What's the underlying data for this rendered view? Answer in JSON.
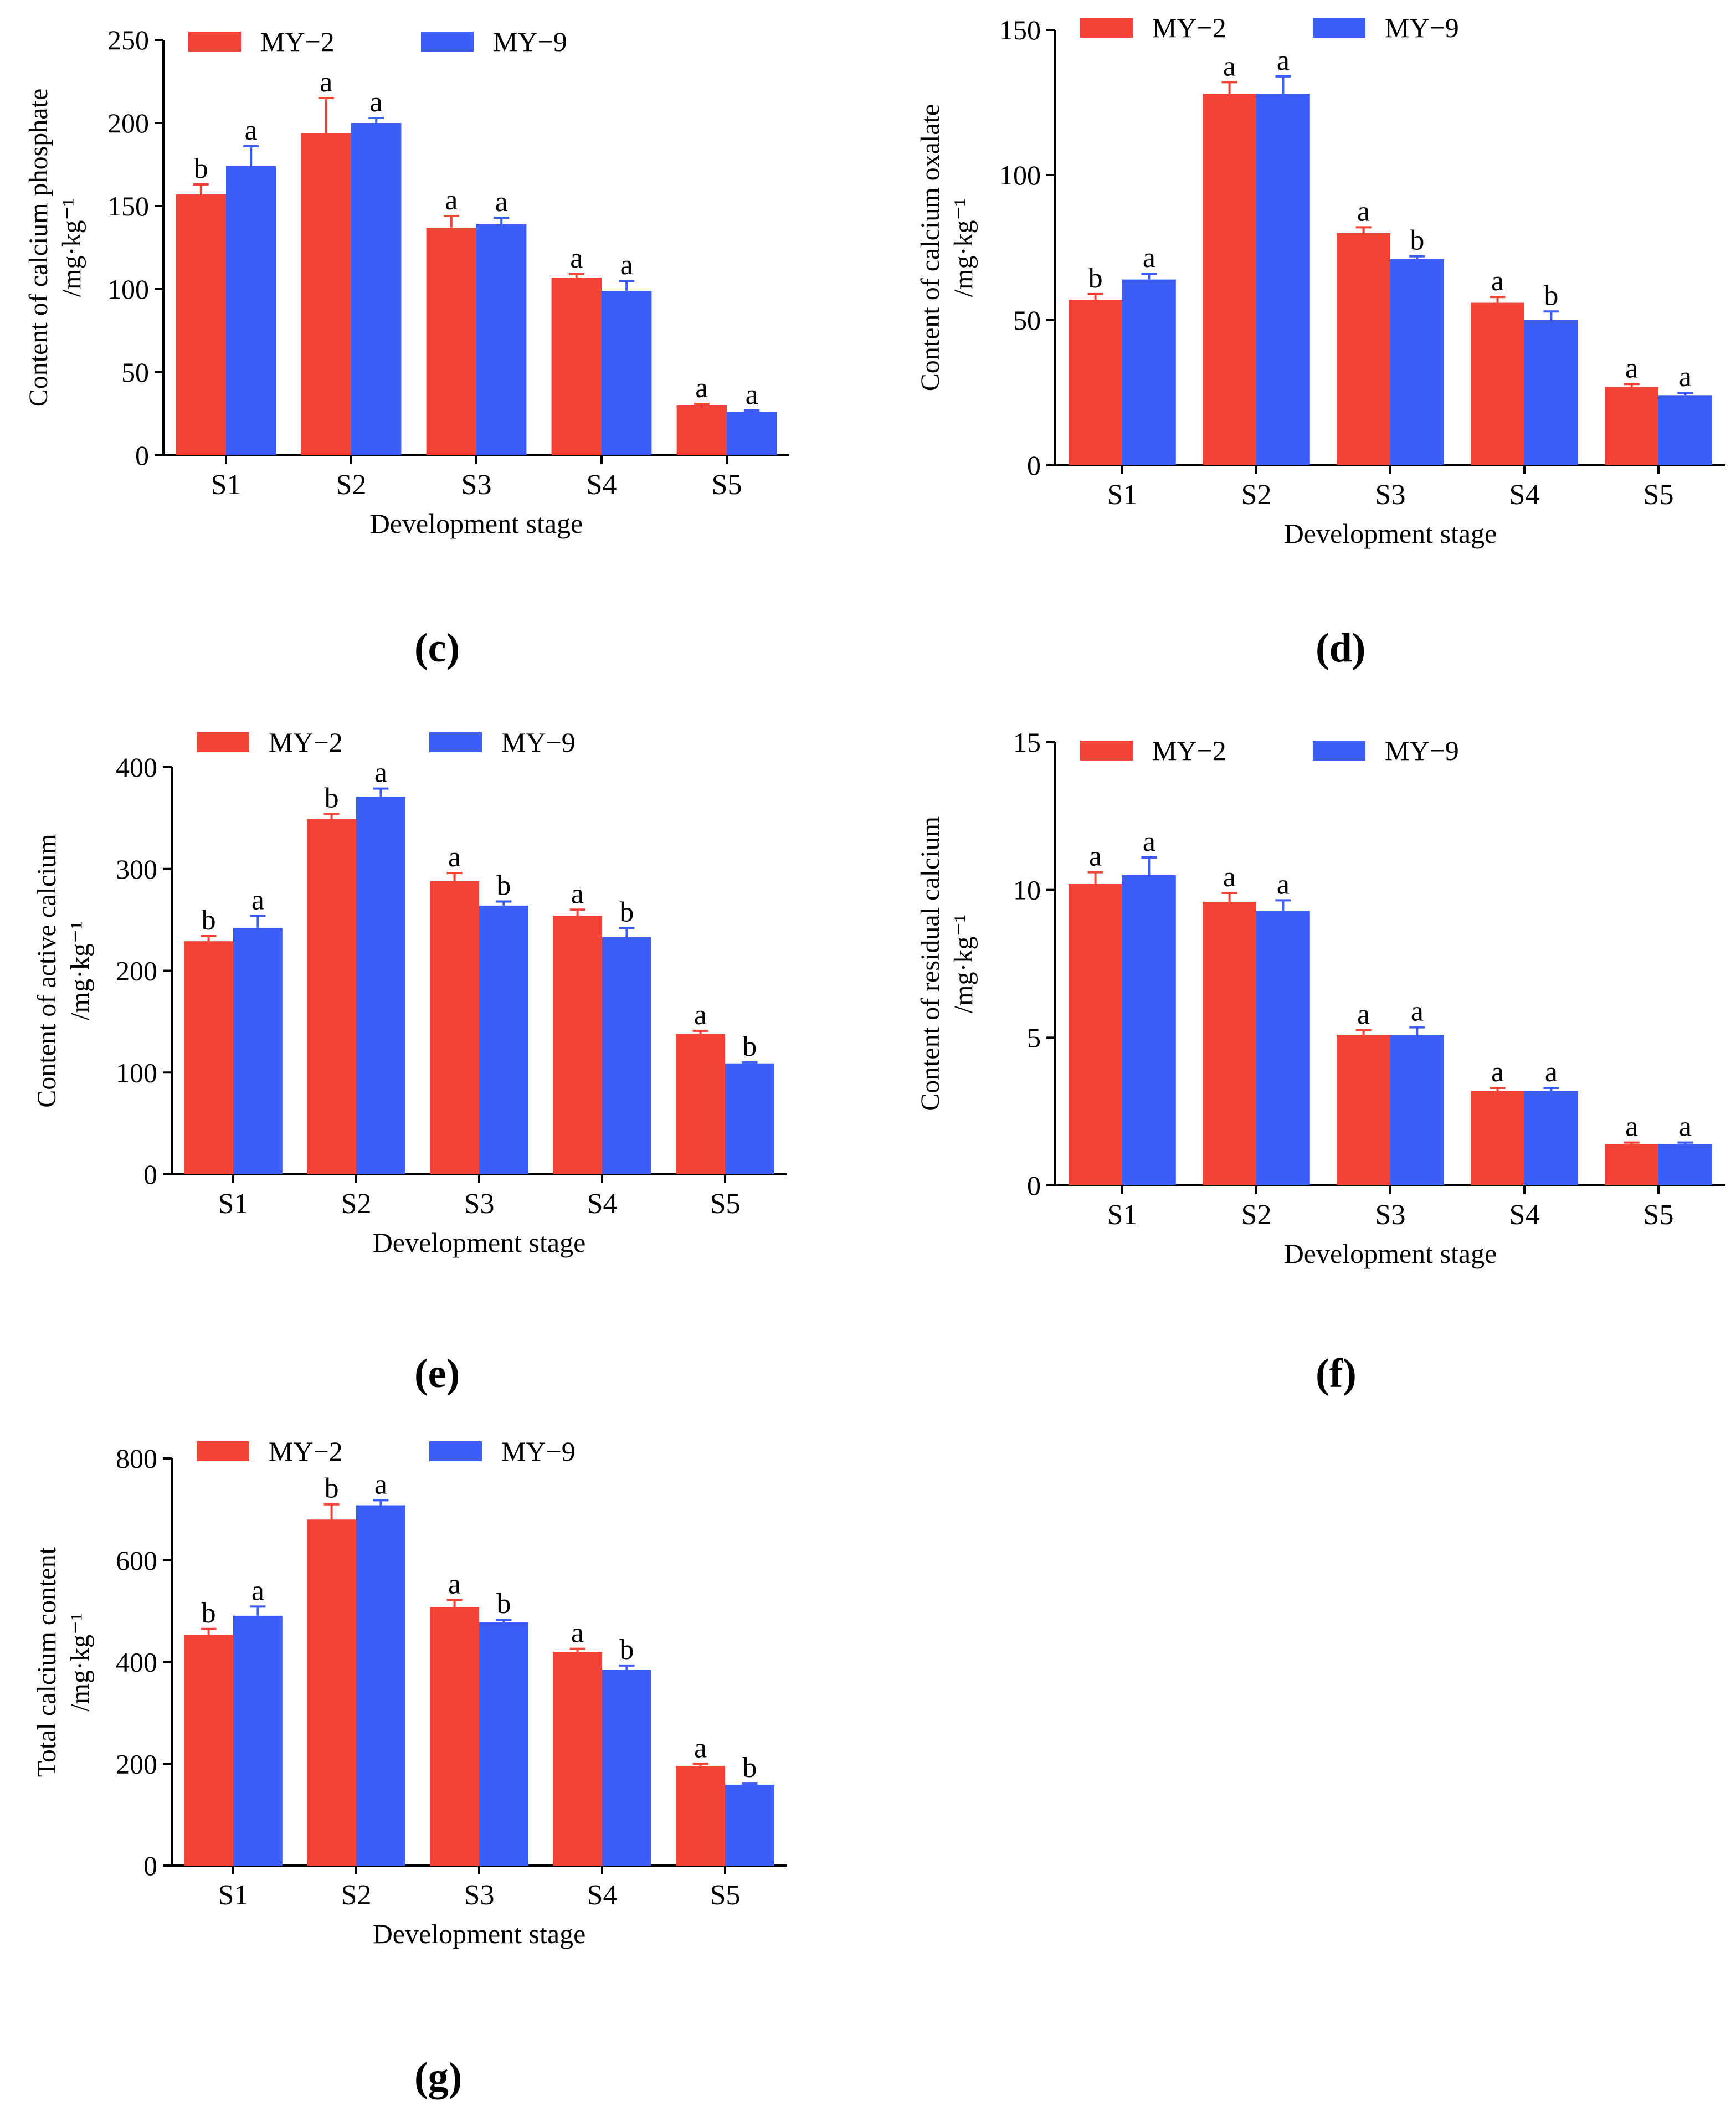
{
  "series_colors": {
    "MY-2": "#f54236",
    "MY-9": "#3c5ef7"
  },
  "chart_data": [
    {
      "id": "c",
      "panel_label": "(c)",
      "type": "bar",
      "ylabel": [
        "Content of calcium phosphate",
        "/mg·kg⁻¹"
      ],
      "xlabel": "Development stage",
      "categories": [
        "S1",
        "S2",
        "S3",
        "S4",
        "S5"
      ],
      "ylim": [
        0,
        250
      ],
      "yticks": [
        0,
        50,
        100,
        150,
        200,
        250
      ],
      "legend": [
        "MY−2",
        "MY−9"
      ],
      "series": [
        {
          "name": "MY-2",
          "values": [
            157,
            194,
            137,
            107,
            30
          ],
          "errors": [
            6,
            21,
            7,
            2,
            1
          ],
          "letters": [
            "b",
            "a",
            "a",
            "a",
            "a"
          ]
        },
        {
          "name": "MY-9",
          "values": [
            174,
            200,
            139,
            99,
            26
          ],
          "errors": [
            12,
            3,
            4,
            6,
            1
          ],
          "letters": [
            "a",
            "a",
            "a",
            "a",
            "a"
          ]
        }
      ]
    },
    {
      "id": "d",
      "panel_label": "(d)",
      "type": "bar",
      "ylabel": [
        "Content of calcium oxalate",
        "/mg·kg⁻¹"
      ],
      "xlabel": "Development stage",
      "categories": [
        "S1",
        "S2",
        "S3",
        "S4",
        "S5"
      ],
      "ylim": [
        0,
        150
      ],
      "yticks": [
        0,
        50,
        100,
        150
      ],
      "legend": [
        "MY−2",
        "MY−9"
      ],
      "series": [
        {
          "name": "MY-2",
          "values": [
            57,
            128,
            80,
            56,
            27
          ],
          "errors": [
            2,
            4,
            2,
            2,
            1
          ],
          "letters": [
            "b",
            "a",
            "a",
            "a",
            "a"
          ]
        },
        {
          "name": "MY-9",
          "values": [
            64,
            128,
            71,
            50,
            24
          ],
          "errors": [
            2,
            6,
            1,
            3,
            1
          ],
          "letters": [
            "a",
            "a",
            "b",
            "b",
            "a"
          ]
        }
      ]
    },
    {
      "id": "e",
      "panel_label": "(e)",
      "type": "bar",
      "ylabel": [
        "Content of active calcium",
        "/mg·kg⁻¹"
      ],
      "xlabel": "Development stage",
      "categories": [
        "S1",
        "S2",
        "S3",
        "S4",
        "S5"
      ],
      "ylim": [
        0,
        400
      ],
      "yticks": [
        0,
        100,
        200,
        300,
        400
      ],
      "legend": [
        "MY−2",
        "MY−9"
      ],
      "series": [
        {
          "name": "MY-2",
          "values": [
            229,
            349,
            288,
            254,
            138
          ],
          "errors": [
            5,
            5,
            8,
            6,
            3
          ],
          "letters": [
            "b",
            "b",
            "a",
            "a",
            "a"
          ]
        },
        {
          "name": "MY-9",
          "values": [
            242,
            371,
            264,
            233,
            109
          ],
          "errors": [
            12,
            8,
            4,
            9,
            1
          ],
          "letters": [
            "a",
            "a",
            "b",
            "b",
            "b"
          ]
        }
      ]
    },
    {
      "id": "f",
      "panel_label": "(f)",
      "type": "bar",
      "ylabel": [
        "Content of residual calcium",
        "/mg·kg⁻¹"
      ],
      "xlabel": "Development stage",
      "categories": [
        "S1",
        "S2",
        "S3",
        "S4",
        "S5"
      ],
      "ylim": [
        0,
        15
      ],
      "yticks": [
        0,
        5,
        10,
        15
      ],
      "legend": [
        "MY−2",
        "MY−9"
      ],
      "series": [
        {
          "name": "MY-2",
          "values": [
            10.2,
            9.6,
            5.1,
            3.2,
            1.4
          ],
          "errors": [
            0.4,
            0.3,
            0.15,
            0.1,
            0.05
          ],
          "letters": [
            "a",
            "a",
            "a",
            "a",
            "a"
          ]
        },
        {
          "name": "MY-9",
          "values": [
            10.5,
            9.3,
            5.1,
            3.2,
            1.4
          ],
          "errors": [
            0.6,
            0.35,
            0.25,
            0.1,
            0.05
          ],
          "letters": [
            "a",
            "a",
            "a",
            "a",
            "a"
          ]
        }
      ]
    },
    {
      "id": "g",
      "panel_label": "(g)",
      "type": "bar",
      "ylabel": [
        "Total calcium content",
        "/mg·kg⁻¹"
      ],
      "xlabel": "Development stage",
      "categories": [
        "S1",
        "S2",
        "S3",
        "S4",
        "S5"
      ],
      "ylim": [
        0,
        800
      ],
      "yticks": [
        0,
        200,
        400,
        600,
        800
      ],
      "legend": [
        "MY−2",
        "MY−9"
      ],
      "series": [
        {
          "name": "MY-2",
          "values": [
            453,
            680,
            508,
            420,
            196
          ],
          "errors": [
            12,
            30,
            14,
            6,
            4
          ],
          "letters": [
            "b",
            "b",
            "a",
            "a",
            "a"
          ]
        },
        {
          "name": "MY-9",
          "values": [
            491,
            708,
            478,
            385,
            159
          ],
          "errors": [
            18,
            10,
            5,
            8,
            2
          ],
          "letters": [
            "a",
            "a",
            "b",
            "b",
            "b"
          ]
        }
      ]
    }
  ]
}
